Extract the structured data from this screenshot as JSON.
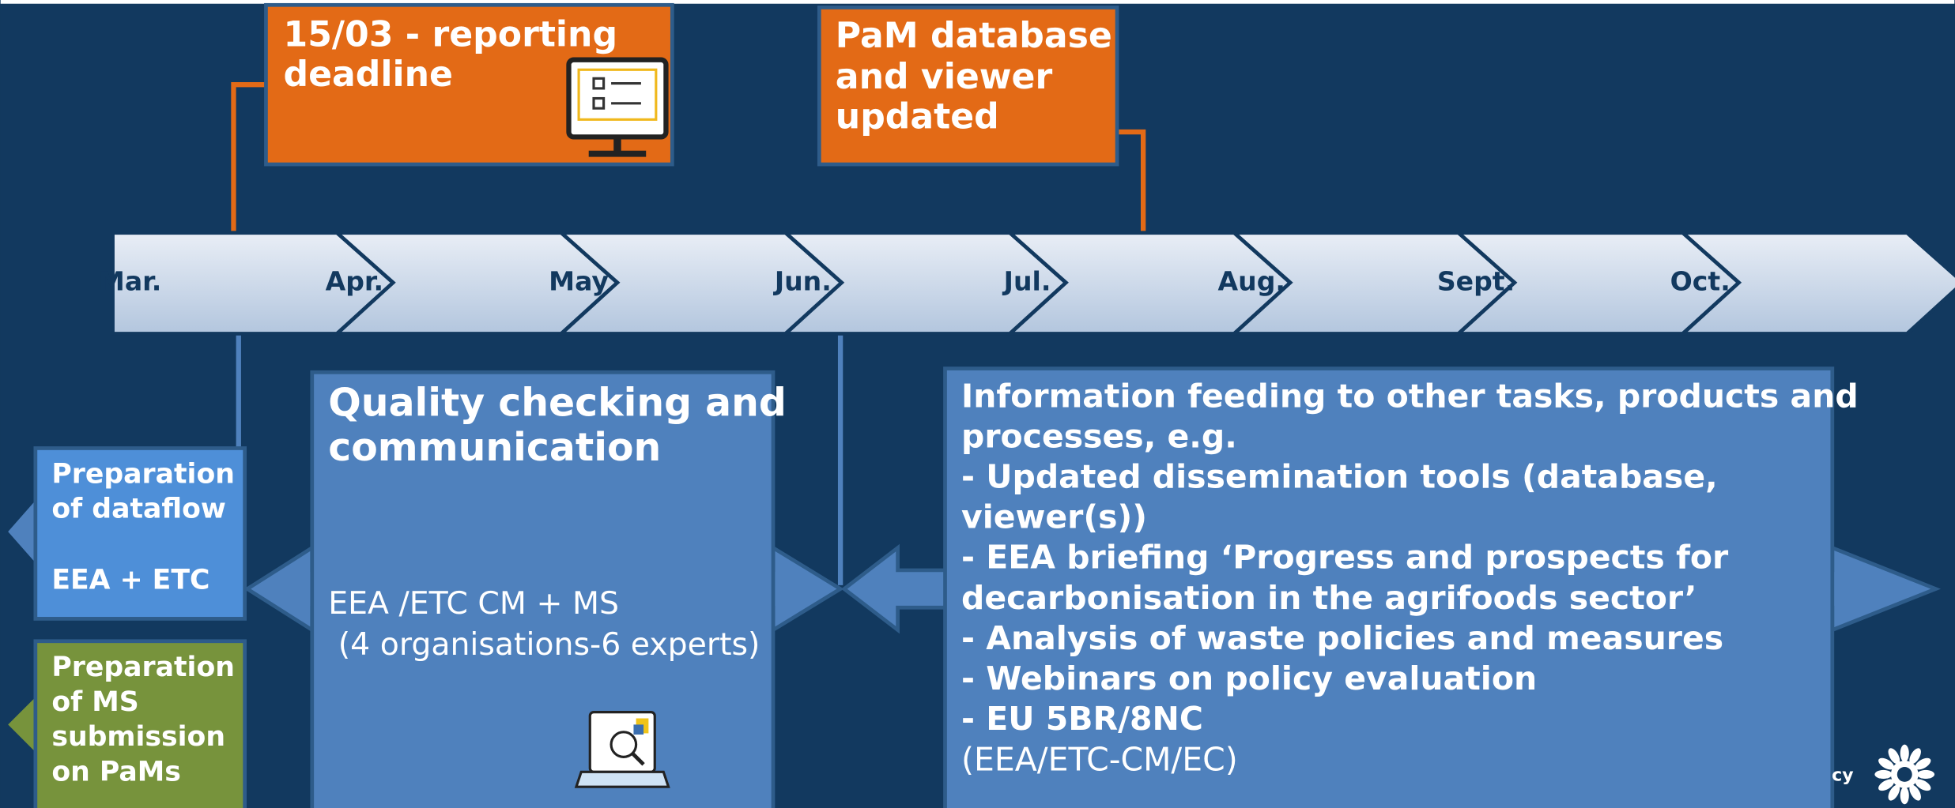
{
  "timeline": {
    "months": [
      "Mar.",
      "Apr.",
      "May",
      "Jun.",
      "Jul.",
      "Aug.",
      "Sept.",
      "Oct."
    ]
  },
  "callouts": [
    {
      "lines": [
        "15/03 - reporting",
        "deadline"
      ]
    },
    {
      "lines": [
        "PaM database",
        "and viewer",
        "updated"
      ]
    }
  ],
  "boxes": {
    "preparation_dataflow": {
      "lines": [
        "Preparation",
        "of  dataflow"
      ],
      "actors": "EEA + ETC"
    },
    "preparation_ms": {
      "lines": [
        "Preparation",
        "of MS",
        "submission",
        "on PaMs"
      ]
    },
    "quality": {
      "title": [
        "Quality checking and",
        "communication"
      ],
      "actors": [
        "EEA /ETC CM  + MS",
        " (4 organisations-6 experts)"
      ]
    },
    "information": {
      "lines": [
        "Information feeding to other tasks, products and",
        "processes, e.g.",
        "- Updated dissemination tools (database,",
        "viewer(s))",
        "- EEA briefing ‘Progress and prospects for",
        "decarbonisation in the agrifoods sector’",
        "- Analysis of waste policies and measures",
        "- Webinars on policy evaluation",
        "- EU 5BR/8NC"
      ],
      "actors": "(EEA/ETC-CM/EC)"
    }
  },
  "footer": "cy"
}
